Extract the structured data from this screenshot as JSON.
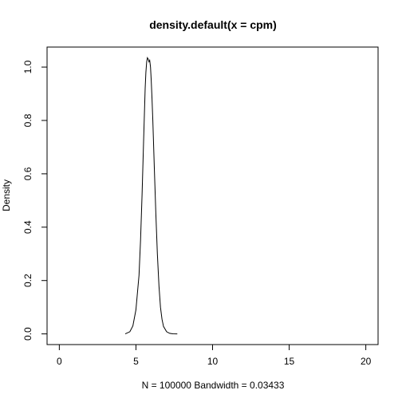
{
  "chart_data": {
    "type": "line",
    "title": "density.default(x = cpm)",
    "xlabel": "N = 100000   Bandwidth = 0.03433",
    "ylabel": "Density",
    "xlim": [
      -0.8,
      20.8
    ],
    "ylim": [
      -0.04,
      1.075
    ],
    "x_ticks": [
      0,
      5,
      10,
      15,
      20
    ],
    "y_ticks": [
      0.0,
      0.2,
      0.4,
      0.6,
      0.8,
      1.0
    ],
    "x_tick_labels": [
      "0",
      "5",
      "10",
      "15",
      "20"
    ],
    "y_tick_labels": [
      "0.0",
      "0.2",
      "0.4",
      "0.6",
      "0.8",
      "1.0"
    ],
    "grid": false,
    "series": [
      {
        "x": [
          4.3,
          4.6,
          4.8,
          5.0,
          5.2,
          5.3,
          5.4,
          5.5,
          5.55,
          5.6,
          5.65,
          5.7,
          5.75,
          5.8,
          5.85,
          5.9,
          5.95,
          6.0,
          6.05,
          6.1,
          6.2,
          6.3,
          6.4,
          6.5,
          6.6,
          6.7,
          6.8,
          7.0,
          7.2,
          7.4,
          7.7
        ],
        "y": [
          0.0,
          0.008,
          0.03,
          0.09,
          0.22,
          0.35,
          0.52,
          0.72,
          0.82,
          0.92,
          0.98,
          1.02,
          1.035,
          1.03,
          1.02,
          1.025,
          1.0,
          0.95,
          0.88,
          0.8,
          0.62,
          0.45,
          0.3,
          0.18,
          0.1,
          0.055,
          0.028,
          0.008,
          0.002,
          0.0005,
          0.0
        ]
      }
    ]
  }
}
